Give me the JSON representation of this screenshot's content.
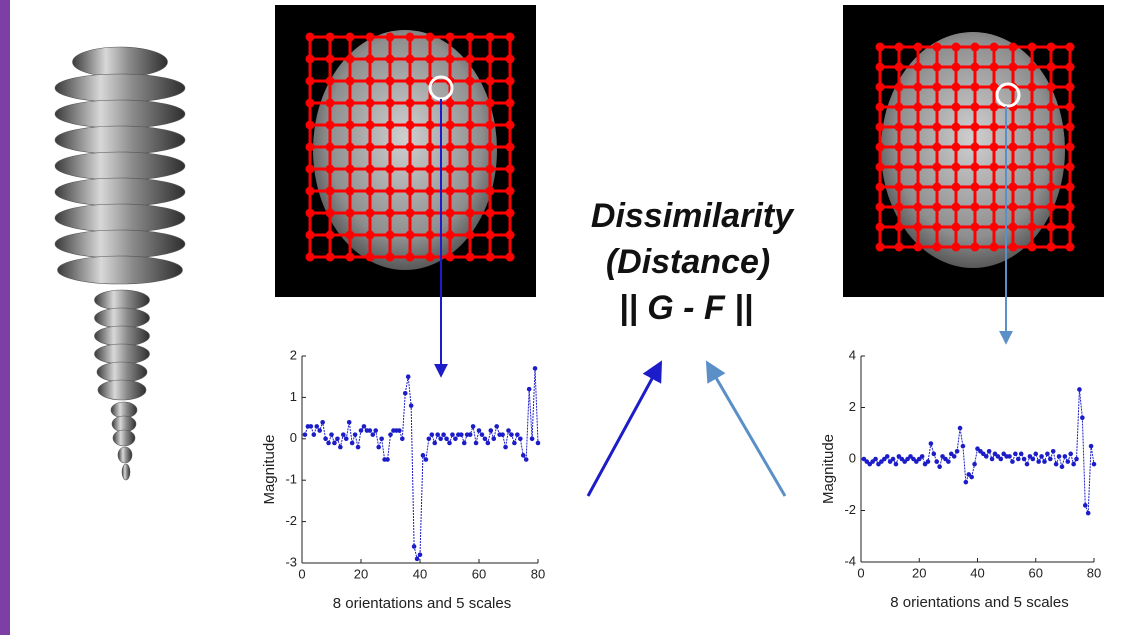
{
  "center_text": [
    "Dissimilarity",
    "(Distance)",
    "|| G - F ||"
  ],
  "chart_data": [
    {
      "type": "line",
      "color": "#1c1cc8",
      "ylabel": "Magnitude",
      "xlabel": "8 orientations and 5 scales",
      "xlim": [
        0,
        80
      ],
      "xticks": [
        0,
        20,
        40,
        60,
        80
      ],
      "ylim": [
        -3,
        2
      ],
      "yticks": [
        -3,
        -2,
        -1,
        0,
        1,
        2
      ],
      "x": [
        1,
        2,
        3,
        4,
        5,
        6,
        7,
        8,
        9,
        10,
        11,
        12,
        13,
        14,
        15,
        16,
        17,
        18,
        19,
        20,
        21,
        22,
        23,
        24,
        25,
        26,
        27,
        28,
        29,
        30,
        31,
        32,
        33,
        34,
        35,
        36,
        37,
        38,
        39,
        40,
        41,
        42,
        43,
        44,
        45,
        46,
        47,
        48,
        49,
        50,
        51,
        52,
        53,
        54,
        55,
        56,
        57,
        58,
        59,
        60,
        61,
        62,
        63,
        64,
        65,
        66,
        67,
        68,
        69,
        70,
        71,
        72,
        73,
        74,
        75,
        76,
        77,
        78,
        79,
        80
      ],
      "values": [
        0.1,
        0.3,
        0.3,
        0.1,
        0.3,
        0.2,
        0.4,
        0,
        -0.1,
        0.1,
        -0.1,
        0,
        -0.2,
        0.1,
        0,
        0.4,
        -0.1,
        0.1,
        -0.2,
        0.2,
        0.3,
        0.2,
        0.2,
        0.1,
        0.2,
        -0.2,
        0,
        -0.5,
        -0.5,
        0.1,
        0.2,
        0.2,
        0.2,
        0,
        1.1,
        1.5,
        0.8,
        -2.6,
        -2.9,
        -2.8,
        -0.4,
        -0.5,
        0,
        0.1,
        -0.1,
        0.1,
        0,
        0.1,
        0,
        -0.1,
        0.1,
        0,
        0.1,
        0.1,
        -0.1,
        0.1,
        0.1,
        0.3,
        -0.1,
        0.2,
        0.1,
        0,
        -0.1,
        0.2,
        0,
        0.3,
        0.1,
        0.1,
        -0.2,
        0.2,
        0.1,
        -0.1,
        0.1,
        0,
        -0.4,
        -0.5,
        1.2,
        0,
        1.7,
        -0.1
      ]
    },
    {
      "type": "line",
      "color": "#1c1cc8",
      "ylabel": "Magnitude",
      "xlabel": "8 orientations and 5 scales",
      "xlim": [
        0,
        80
      ],
      "xticks": [
        0,
        20,
        40,
        60,
        80
      ],
      "ylim": [
        -4,
        4
      ],
      "yticks": [
        -4,
        -2,
        0,
        2,
        4
      ],
      "x": [
        1,
        2,
        3,
        4,
        5,
        6,
        7,
        8,
        9,
        10,
        11,
        12,
        13,
        14,
        15,
        16,
        17,
        18,
        19,
        20,
        21,
        22,
        23,
        24,
        25,
        26,
        27,
        28,
        29,
        30,
        31,
        32,
        33,
        34,
        35,
        36,
        37,
        38,
        39,
        40,
        41,
        42,
        43,
        44,
        45,
        46,
        47,
        48,
        49,
        50,
        51,
        52,
        53,
        54,
        55,
        56,
        57,
        58,
        59,
        60,
        61,
        62,
        63,
        64,
        65,
        66,
        67,
        68,
        69,
        70,
        71,
        72,
        73,
        74,
        75,
        76,
        77,
        78,
        79,
        80
      ],
      "values": [
        0,
        -0.1,
        -0.2,
        -0.1,
        0,
        -0.2,
        -0.1,
        0,
        0.1,
        -0.1,
        0,
        -0.2,
        0.1,
        0,
        -0.1,
        0,
        0.1,
        0,
        -0.1,
        0,
        0.1,
        -0.2,
        -0.1,
        0.6,
        0.2,
        -0.1,
        -0.3,
        0.1,
        0,
        -0.1,
        0.2,
        0.1,
        0.3,
        1.2,
        0.5,
        -0.9,
        -0.6,
        -0.7,
        -0.2,
        0.4,
        0.3,
        0.2,
        0.1,
        0.3,
        0,
        0.2,
        0.1,
        0,
        0.2,
        0.1,
        0.1,
        -0.1,
        0.2,
        0,
        0.2,
        0,
        -0.2,
        0.1,
        0,
        0.2,
        -0.1,
        0.1,
        -0.1,
        0.2,
        0,
        0.3,
        -0.2,
        0.1,
        -0.3,
        0.1,
        -0.1,
        0.2,
        -0.2,
        0,
        2.7,
        1.6,
        -1.8,
        -2.1,
        0.5,
        -0.2
      ]
    }
  ]
}
